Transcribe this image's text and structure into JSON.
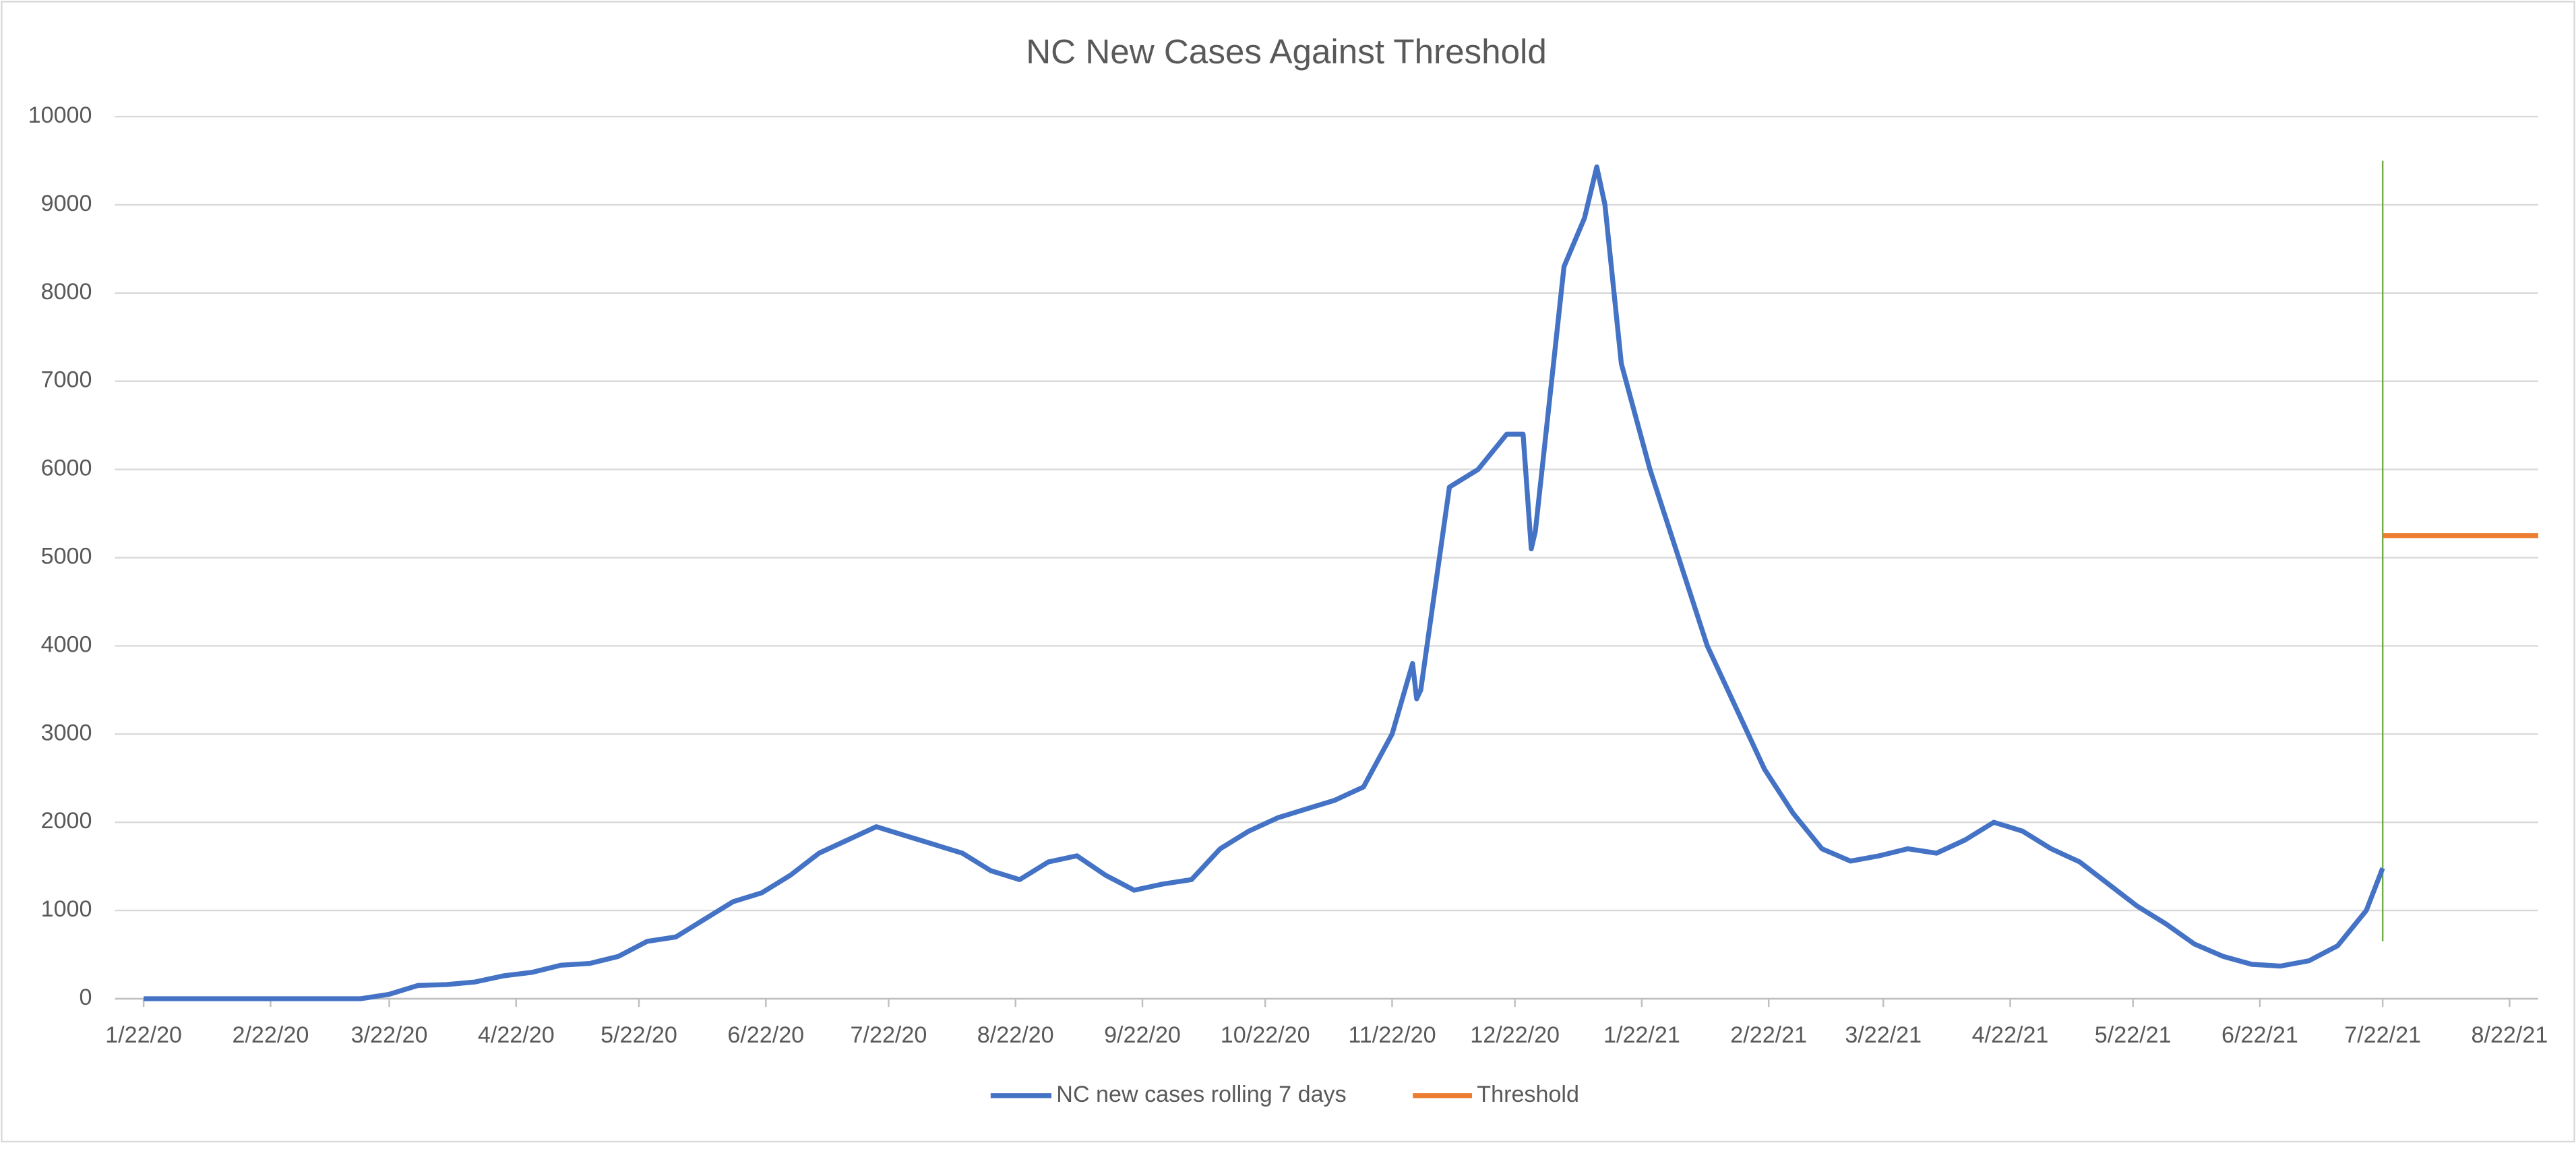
{
  "chart_data": {
    "type": "line",
    "title": "NC New Cases Against Threshold",
    "x": [
      "1/22/20",
      "1/29/20",
      "2/5/20",
      "2/12/20",
      "2/19/20",
      "2/26/20",
      "3/4/20",
      "3/11/20",
      "3/15/20",
      "3/22/20",
      "3/29/20",
      "4/5/20",
      "4/12/20",
      "4/19/20",
      "4/26/20",
      "5/3/20",
      "5/10/20",
      "5/17/20",
      "5/24/20",
      "5/31/20",
      "6/7/20",
      "6/14/20",
      "6/21/20",
      "6/28/20",
      "7/5/20",
      "7/12/20",
      "7/19/20",
      "7/26/20",
      "8/2/20",
      "8/9/20",
      "8/16/20",
      "8/23/20",
      "8/30/20",
      "9/6/20",
      "9/13/20",
      "9/20/20",
      "9/27/20",
      "10/4/20",
      "10/11/20",
      "10/18/20",
      "10/25/20",
      "11/1/20",
      "11/8/20",
      "11/15/20",
      "11/22/20",
      "11/27/20",
      "11/28/20",
      "11/29/20",
      "12/6/20",
      "12/13/20",
      "12/20/20",
      "12/24/20",
      "12/26/20",
      "12/27/20",
      "1/3/21",
      "1/8/21",
      "1/11/21",
      "1/13/21",
      "1/17/21",
      "1/24/21",
      "1/31/21",
      "2/7/21",
      "2/14/21",
      "2/21/21",
      "2/28/21",
      "3/7/21",
      "3/14/21",
      "3/21/21",
      "3/28/21",
      "4/4/21",
      "4/11/21",
      "4/18/21",
      "4/25/21",
      "5/2/21",
      "5/9/21",
      "5/16/21",
      "5/23/21",
      "5/30/21",
      "6/6/21",
      "6/13/21",
      "6/20/21",
      "6/27/21",
      "7/4/21",
      "7/11/21",
      "7/18/21",
      "7/22/21"
    ],
    "series": [
      {
        "name": "NC new cases rolling 7 days",
        "color": "#4472c4",
        "values": [
          0,
          0,
          0,
          0,
          0,
          0,
          0,
          0,
          0,
          50,
          150,
          160,
          190,
          260,
          300,
          380,
          400,
          480,
          650,
          700,
          900,
          1100,
          1200,
          1400,
          1650,
          1800,
          1950,
          1850,
          1750,
          1650,
          1450,
          1350,
          1550,
          1620,
          1400,
          1230,
          1300,
          1350,
          1700,
          1900,
          2050,
          2150,
          2250,
          2400,
          3000,
          3800,
          3400,
          3500,
          5800,
          6000,
          6400,
          6400,
          5100,
          5300,
          8300,
          8850,
          9430,
          9000,
          7200,
          6000,
          5000,
          4000,
          3300,
          2600,
          2100,
          1700,
          1560,
          1620,
          1700,
          1650,
          1800,
          2000,
          1900,
          1700,
          1550,
          1300,
          1050,
          850,
          620,
          480,
          390,
          370,
          430,
          600,
          1000,
          1480
        ]
      },
      {
        "name": "Threshold",
        "color": "#ed7d31",
        "x": [
          "7/22/21",
          "8/29/21"
        ],
        "values": [
          5250,
          5250
        ]
      }
    ],
    "vline": {
      "x": "7/22/21",
      "from": 650,
      "to": 9500,
      "color": "#70ad47"
    },
    "xlim": [
      "1/15/20",
      "8/29/21"
    ],
    "xticks": [
      "1/22/20",
      "2/22/20",
      "3/22/20",
      "4/22/20",
      "5/22/20",
      "6/22/20",
      "7/22/20",
      "8/22/20",
      "9/22/20",
      "10/22/20",
      "11/22/20",
      "12/22/20",
      "1/22/21",
      "2/22/21",
      "3/22/21",
      "4/22/21",
      "5/22/21",
      "6/22/21",
      "7/22/21",
      "8/22/21"
    ],
    "ylim": [
      0,
      10000
    ],
    "yticks": [
      0,
      1000,
      2000,
      3000,
      4000,
      5000,
      6000,
      7000,
      8000,
      9000,
      10000
    ],
    "grid": true,
    "legend": "bottom"
  }
}
